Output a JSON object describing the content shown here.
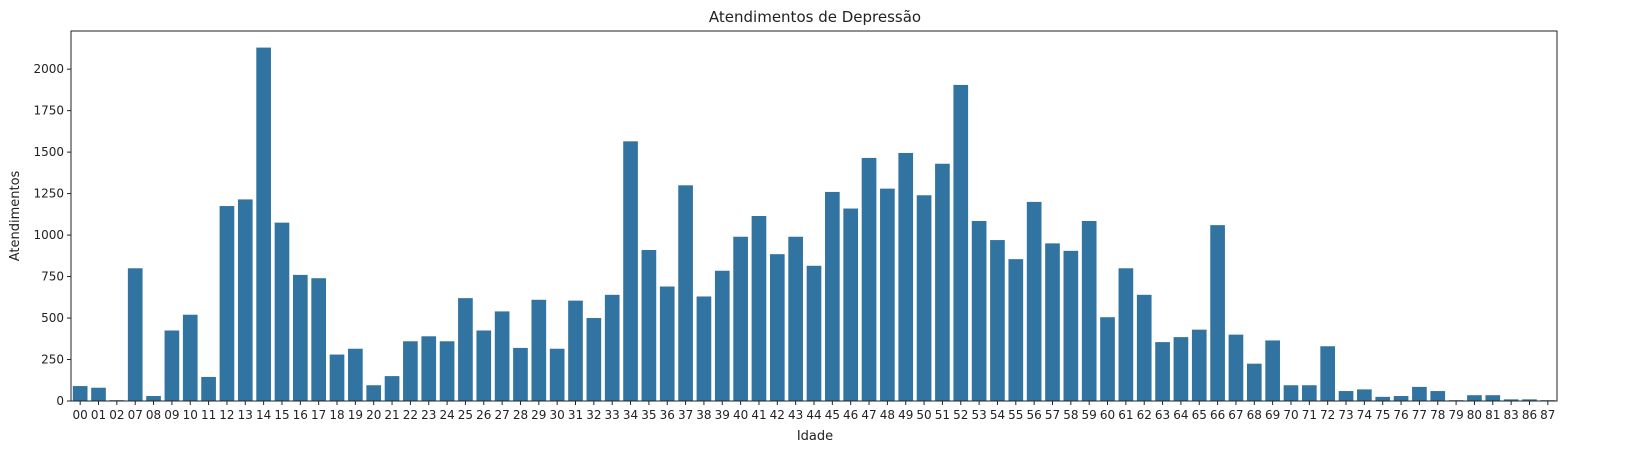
{
  "chart_data": {
    "type": "bar",
    "title": "Atendimentos de Depressão",
    "xlabel": "Idade",
    "ylabel": "Atendimentos",
    "ylim": [
      0,
      2230
    ],
    "yticks": [
      0,
      250,
      500,
      750,
      1000,
      1250,
      1500,
      1750,
      2000
    ],
    "grid": false,
    "bar_color": "#3274a1",
    "categories": [
      "00",
      "01",
      "02",
      "07",
      "08",
      "09",
      "10",
      "11",
      "12",
      "13",
      "14",
      "15",
      "16",
      "17",
      "18",
      "19",
      "20",
      "21",
      "22",
      "23",
      "24",
      "25",
      "26",
      "27",
      "28",
      "29",
      "30",
      "31",
      "32",
      "33",
      "34",
      "35",
      "36",
      "37",
      "38",
      "39",
      "40",
      "41",
      "42",
      "43",
      "44",
      "45",
      "46",
      "47",
      "48",
      "49",
      "50",
      "51",
      "52",
      "53",
      "54",
      "55",
      "56",
      "57",
      "58",
      "59",
      "60",
      "61",
      "62",
      "63",
      "64",
      "65",
      "66",
      "67",
      "68",
      "69",
      "70",
      "71",
      "72",
      "73",
      "74",
      "75",
      "76",
      "77",
      "78",
      "79",
      "80",
      "81",
      "83",
      "86",
      "87"
    ],
    "values": [
      90,
      80,
      5,
      800,
      30,
      425,
      520,
      145,
      1175,
      1215,
      2130,
      1075,
      760,
      740,
      280,
      315,
      95,
      150,
      360,
      390,
      360,
      620,
      425,
      540,
      320,
      610,
      315,
      605,
      500,
      640,
      1565,
      910,
      690,
      1300,
      630,
      785,
      990,
      1115,
      885,
      990,
      815,
      1260,
      1160,
      1465,
      1280,
      1495,
      1240,
      1430,
      1905,
      1085,
      970,
      855,
      1200,
      950,
      905,
      1085,
      505,
      800,
      640,
      355,
      385,
      430,
      1060,
      400,
      225,
      365,
      95,
      95,
      330,
      60,
      70,
      25,
      30,
      85,
      60,
      5,
      35,
      35,
      10,
      10,
      5
    ]
  }
}
